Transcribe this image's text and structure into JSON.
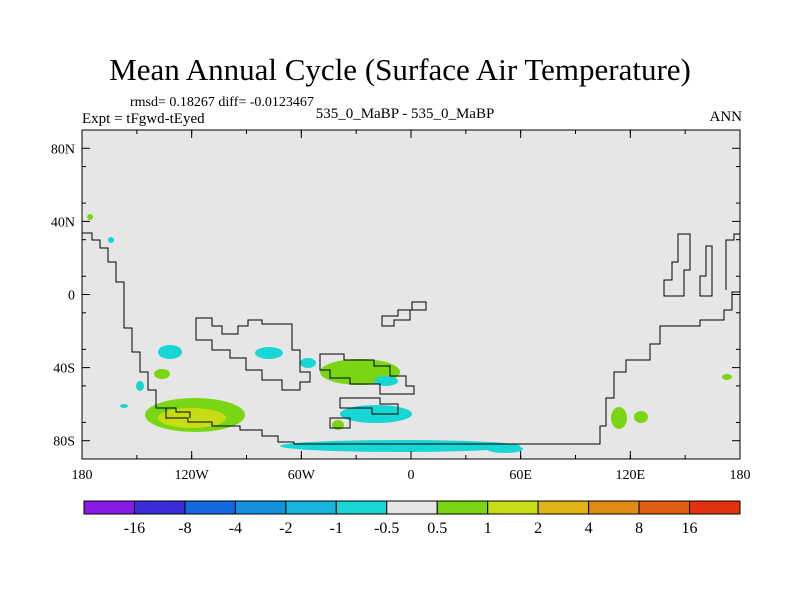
{
  "chart_data": {
    "type": "contour-map",
    "title": "Mean Annual Cycle (Surface Air Temperature)",
    "stats_text": "rmsd= 0.18267 diff= -0.0123467",
    "experiment_label": "Expt = tFgwd-tEyed",
    "subtitle": "535_0_MaBP - 535_0_MaBP",
    "season": "ANN",
    "lon_range": [
      -180,
      180
    ],
    "lat_range": [
      -90,
      90
    ],
    "x_ticks": [
      {
        "value": -180,
        "label": "180"
      },
      {
        "value": -120,
        "label": "120W"
      },
      {
        "value": -60,
        "label": "60W"
      },
      {
        "value": 0,
        "label": "0"
      },
      {
        "value": 60,
        "label": "60E"
      },
      {
        "value": 120,
        "label": "120E"
      },
      {
        "value": 180,
        "label": "180"
      }
    ],
    "y_ticks": [
      {
        "value": 80,
        "label": "80N"
      },
      {
        "value": 40,
        "label": "40N"
      },
      {
        "value": 0,
        "label": "0"
      },
      {
        "value": -40,
        "label": "40S"
      },
      {
        "value": -80,
        "label": "80S"
      }
    ],
    "colorbar": {
      "colors": [
        "#8a1ae6",
        "#3b2bd9",
        "#1469e0",
        "#1592de",
        "#16b5dc",
        "#18d6d4",
        "#e6e6e6",
        "#7ad614",
        "#c7dc14",
        "#e0b414",
        "#e08c14",
        "#e35e14",
        "#e3320f"
      ],
      "labels": [
        "-16",
        "-8",
        "-4",
        "-2",
        "-1",
        "-0.5",
        "0.5",
        "1",
        "2",
        "4",
        "8",
        "16"
      ]
    }
  }
}
